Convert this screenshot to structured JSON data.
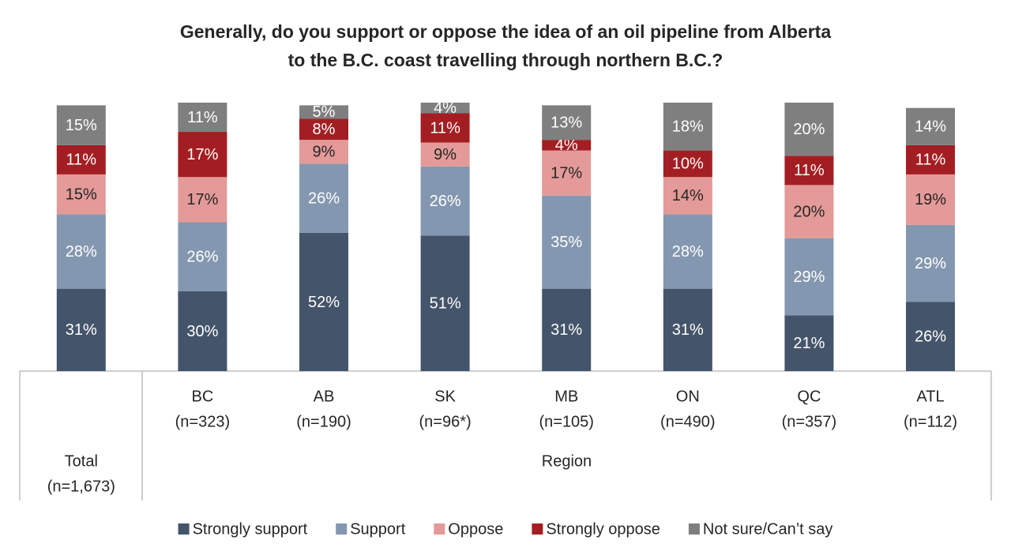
{
  "chart_data": {
    "type": "stacked-bar",
    "title": [
      "Generally, do you support or oppose the idea of an oil pipeline from Alberta",
      "to the B.C. coast travelling through northern B.C.?"
    ],
    "categories": [
      "Total",
      "BC",
      "AB",
      "SK",
      "MB",
      "ON",
      "QC",
      "ATL"
    ],
    "sample_sizes": [
      "(n=1,673)",
      "(n=323)",
      "(n=190)",
      "(n=96*)",
      "(n=105)",
      "(n=490)",
      "(n=357)",
      "(n=112)"
    ],
    "group_label": "Region",
    "series": [
      {
        "name": "Strongly support",
        "color": "#44546a",
        "values": [
          31,
          30,
          52,
          51,
          31,
          31,
          21,
          26
        ],
        "value_labels": [
          "31%",
          "30%",
          "52%",
          "51%",
          "31%",
          "31%",
          "21%",
          "26%"
        ]
      },
      {
        "name": "Support",
        "color": "#8497b0",
        "values": [
          28,
          26,
          26,
          26,
          35,
          28,
          29,
          29
        ],
        "value_labels": [
          "28%",
          "26%",
          "26%",
          "26%",
          "35%",
          "28%",
          "29%",
          "29%"
        ]
      },
      {
        "name": "Oppose",
        "color": "#e39a98",
        "values": [
          15,
          17,
          9,
          9,
          17,
          14,
          20,
          19
        ],
        "value_labels": [
          "15%",
          "17%",
          "9%",
          "9%",
          "17%",
          "14%",
          "20%",
          "19%"
        ]
      },
      {
        "name": "Strongly oppose",
        "color": "#a31e22",
        "values": [
          11,
          17,
          8,
          11,
          4,
          10,
          11,
          11
        ],
        "value_labels": [
          "11%",
          "17%",
          "8%",
          "11%",
          "4%",
          "10%",
          "11%",
          "11%"
        ]
      },
      {
        "name": "Not sure/Can’t say",
        "color": "#7f7f7f",
        "values": [
          15,
          11,
          5,
          4,
          13,
          18,
          20,
          14
        ],
        "value_labels": [
          "15%",
          "11%",
          "5%",
          "4%",
          "13%",
          "18%",
          "20%",
          "14%"
        ]
      }
    ]
  }
}
